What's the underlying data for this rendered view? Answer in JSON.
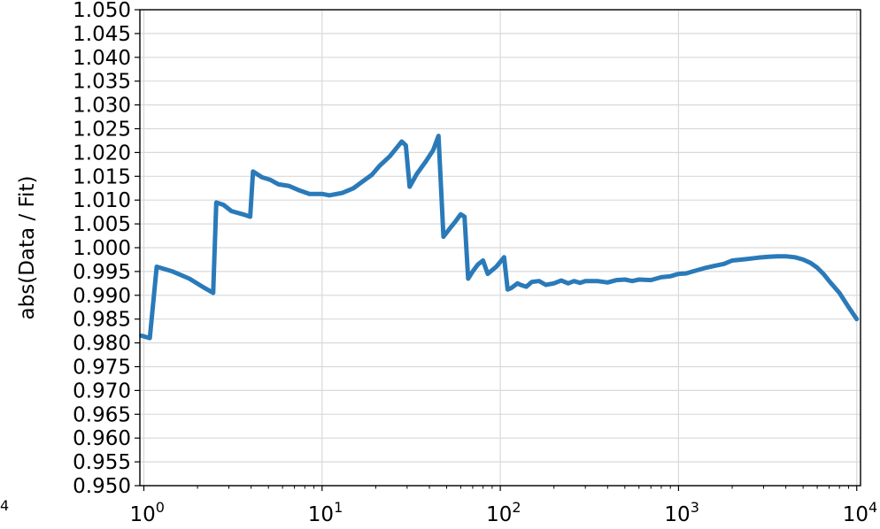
{
  "chart_data": {
    "type": "line",
    "title": "",
    "xlabel": "",
    "ylabel": "abs(Data / Fit)",
    "xscale": "log",
    "xlim": [
      0.95,
      10500
    ],
    "ylim": [
      0.95,
      1.05
    ],
    "grid": true,
    "line_color": "#2a7ab9",
    "y_ticks": [
      "0.950",
      "0.955",
      "0.960",
      "0.965",
      "0.970",
      "0.975",
      "0.980",
      "0.985",
      "0.990",
      "0.995",
      "1.000",
      "1.005",
      "1.010",
      "1.015",
      "1.020",
      "1.025",
      "1.030",
      "1.035",
      "1.040",
      "1.045",
      "1.050"
    ],
    "x_ticks": [
      {
        "value": 1,
        "base": "10",
        "exp": "0"
      },
      {
        "value": 10,
        "base": "10",
        "exp": "1"
      },
      {
        "value": 100,
        "base": "10",
        "exp": "2"
      },
      {
        "value": 1000,
        "base": "10",
        "exp": "3"
      },
      {
        "value": 10000,
        "base": "10",
        "exp": "4"
      }
    ],
    "stray_label": "4",
    "series": [
      {
        "x": [
          0.97,
          1.08,
          1.18,
          1.45,
          1.8,
          2.2,
          2.45,
          2.55,
          2.8,
          3.1,
          3.6,
          3.95,
          4.1,
          4.6,
          5.1,
          5.7,
          6.5,
          7.5,
          8.5,
          10,
          11,
          13,
          15,
          17,
          19,
          21,
          24,
          28,
          29.5,
          31,
          34,
          38,
          42,
          45,
          48,
          52,
          56,
          60,
          63,
          66,
          70,
          75,
          80,
          85,
          95,
          105,
          110,
          115,
          125,
          130,
          140,
          150,
          165,
          180,
          200,
          220,
          240,
          260,
          280,
          300,
          350,
          400,
          450,
          500,
          550,
          600,
          700,
          800,
          900,
          1000,
          1100,
          1200,
          1400,
          1600,
          1800,
          2000,
          2400,
          2800,
          3200,
          3600,
          4000,
          4500,
          5000,
          5500,
          6000,
          6500,
          7000,
          8000,
          9000,
          10000
        ],
        "y": [
          0.9815,
          0.981,
          0.996,
          0.995,
          0.9935,
          0.9915,
          0.9905,
          1.0095,
          1.009,
          1.0077,
          1.007,
          1.0065,
          1.016,
          1.0148,
          1.0143,
          1.0133,
          1.013,
          1.012,
          1.0113,
          1.0113,
          1.011,
          1.0115,
          1.0125,
          1.014,
          1.0153,
          1.0172,
          1.0192,
          1.0223,
          1.0215,
          1.0128,
          1.0155,
          1.018,
          1.0205,
          1.0235,
          1.0023,
          1.004,
          1.0055,
          1.007,
          1.0065,
          0.9935,
          0.995,
          0.9965,
          0.9973,
          0.9945,
          0.996,
          0.998,
          0.9912,
          0.9915,
          0.9925,
          0.9922,
          0.9918,
          0.9928,
          0.993,
          0.9922,
          0.9925,
          0.9931,
          0.9925,
          0.993,
          0.9926,
          0.993,
          0.993,
          0.9927,
          0.9932,
          0.9933,
          0.993,
          0.9933,
          0.9932,
          0.9938,
          0.994,
          0.9945,
          0.9946,
          0.995,
          0.9957,
          0.9962,
          0.9966,
          0.9973,
          0.9976,
          0.9979,
          0.9981,
          0.9982,
          0.9982,
          0.998,
          0.9975,
          0.9968,
          0.9958,
          0.9945,
          0.993,
          0.9905,
          0.9875,
          0.985
        ]
      }
    ]
  }
}
